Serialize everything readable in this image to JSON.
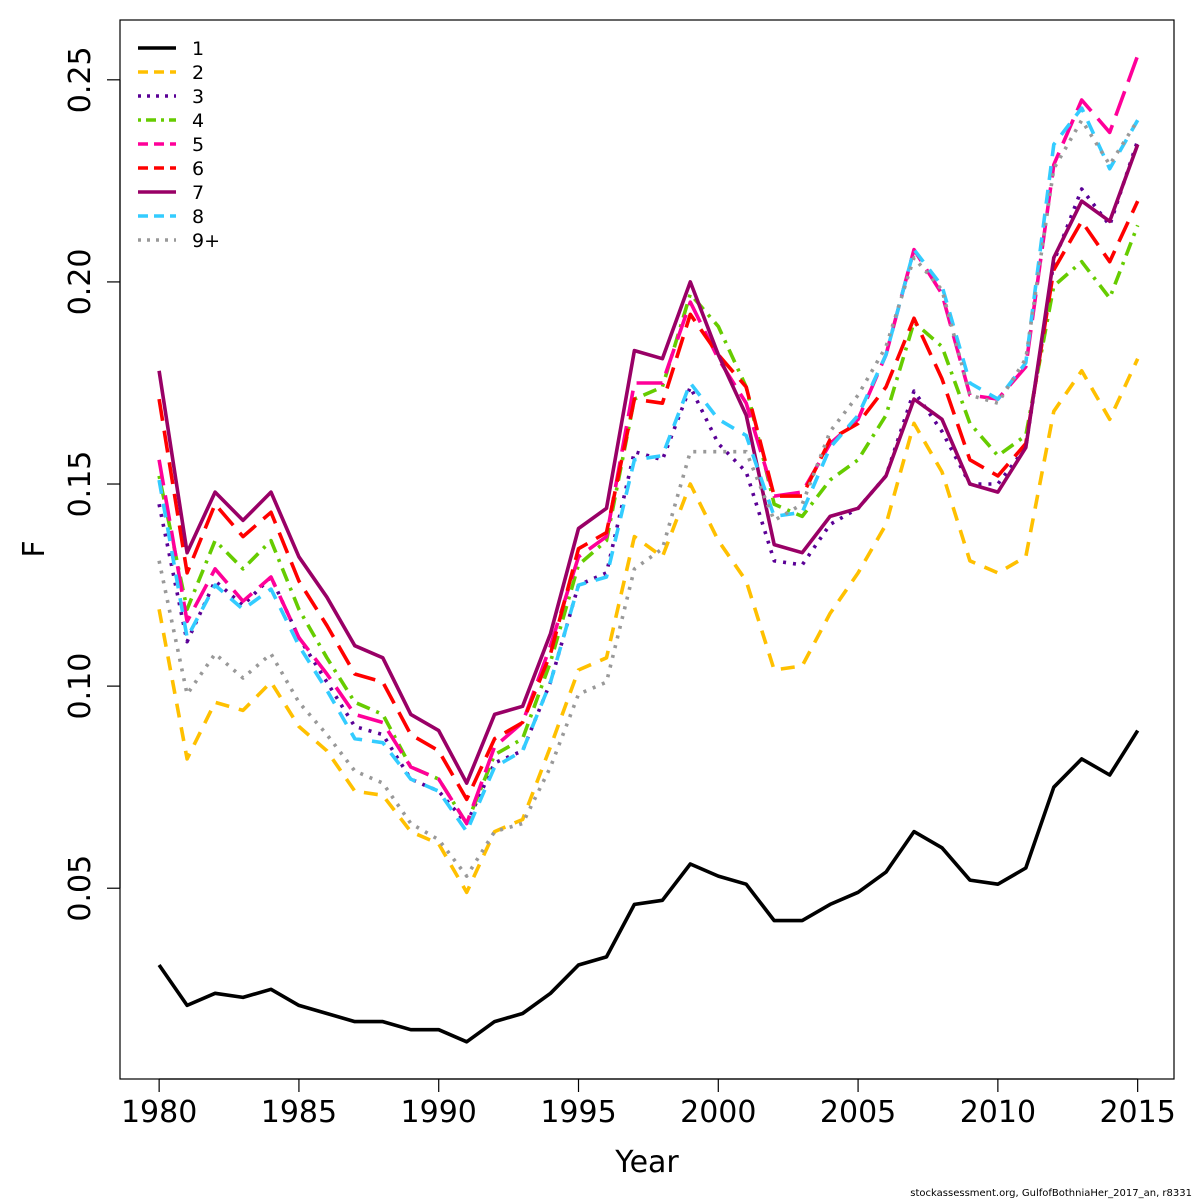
{
  "chart_data": {
    "type": "line",
    "title": "",
    "xlabel": "Year",
    "ylabel": "F",
    "xlim": [
      1978.6,
      2016.3
    ],
    "ylim": [
      0.0028,
      0.2648
    ],
    "x_ticks": [
      1980,
      1985,
      1990,
      1995,
      2000,
      2005,
      2010,
      2015
    ],
    "x_tick_labels": [
      "1980",
      "1985",
      "1990",
      "1995",
      "2000",
      "2005",
      "2010",
      "2015"
    ],
    "y_ticks": [
      0.05,
      0.1,
      0.15,
      0.2,
      0.25
    ],
    "y_tick_labels": [
      "0.05",
      "0.10",
      "0.15",
      "0.20",
      "0.25"
    ],
    "grid": false,
    "legend_position": "top-left",
    "x": [
      1980,
      1981,
      1982,
      1983,
      1984,
      1985,
      1986,
      1987,
      1988,
      1989,
      1990,
      1991,
      1992,
      1993,
      1994,
      1995,
      1996,
      1997,
      1998,
      1999,
      2000,
      2001,
      2002,
      2003,
      2004,
      2005,
      2006,
      2007,
      2008,
      2009,
      2010,
      2011,
      2012,
      2013,
      2014,
      2015
    ],
    "series": [
      {
        "name": "1",
        "color": "#000000",
        "dash": "solid",
        "values": [
          0.031,
          0.021,
          0.024,
          0.023,
          0.025,
          0.021,
          0.019,
          0.017,
          0.017,
          0.015,
          0.015,
          0.012,
          0.017,
          0.019,
          0.024,
          0.031,
          0.033,
          0.046,
          0.047,
          0.056,
          0.053,
          0.051,
          0.042,
          0.042,
          0.046,
          0.049,
          0.054,
          0.064,
          0.06,
          0.052,
          0.051,
          0.055,
          0.075,
          0.082,
          0.078,
          0.089
        ]
      },
      {
        "name": "2",
        "color": "#FFC000",
        "dash": "dashed",
        "values": [
          0.119,
          0.082,
          0.096,
          0.094,
          0.101,
          0.09,
          0.084,
          0.074,
          0.073,
          0.064,
          0.061,
          0.049,
          0.064,
          0.067,
          0.085,
          0.104,
          0.107,
          0.137,
          0.132,
          0.15,
          0.136,
          0.126,
          0.104,
          0.105,
          0.118,
          0.128,
          0.14,
          0.165,
          0.153,
          0.131,
          0.128,
          0.132,
          0.168,
          0.178,
          0.166,
          0.181
        ]
      },
      {
        "name": "3",
        "color": "#5A0096",
        "dash": "dotted",
        "values": [
          0.145,
          0.111,
          0.126,
          0.12,
          0.127,
          0.112,
          0.101,
          0.09,
          0.088,
          0.077,
          0.074,
          0.066,
          0.081,
          0.084,
          0.101,
          0.125,
          0.128,
          0.158,
          0.156,
          0.174,
          0.16,
          0.153,
          0.131,
          0.13,
          0.14,
          0.144,
          0.152,
          0.173,
          0.163,
          0.15,
          0.15,
          0.159,
          0.205,
          0.223,
          0.214,
          0.235
        ]
      },
      {
        "name": "4",
        "color": "#66CC00",
        "dash": "dotdash",
        "values": [
          0.152,
          0.119,
          0.136,
          0.129,
          0.136,
          0.119,
          0.107,
          0.096,
          0.093,
          0.08,
          0.077,
          0.066,
          0.083,
          0.087,
          0.106,
          0.13,
          0.136,
          0.171,
          0.174,
          0.197,
          0.189,
          0.174,
          0.145,
          0.142,
          0.151,
          0.156,
          0.167,
          0.19,
          0.184,
          0.165,
          0.157,
          0.162,
          0.199,
          0.205,
          0.196,
          0.214
        ]
      },
      {
        "name": "5",
        "color": "#FF0099",
        "dash": "longdash",
        "values": [
          0.156,
          0.116,
          0.129,
          0.121,
          0.127,
          0.112,
          0.103,
          0.093,
          0.091,
          0.08,
          0.077,
          0.066,
          0.085,
          0.091,
          0.11,
          0.132,
          0.137,
          0.175,
          0.175,
          0.195,
          0.181,
          0.17,
          0.147,
          0.148,
          0.16,
          0.166,
          0.182,
          0.208,
          0.197,
          0.172,
          0.171,
          0.179,
          0.229,
          0.245,
          0.237,
          0.256
        ]
      },
      {
        "name": "6",
        "color": "#FF0000",
        "dash": "longdash2",
        "values": [
          0.171,
          0.128,
          0.145,
          0.137,
          0.143,
          0.126,
          0.115,
          0.103,
          0.101,
          0.088,
          0.084,
          0.072,
          0.087,
          0.091,
          0.108,
          0.134,
          0.138,
          0.171,
          0.17,
          0.192,
          0.182,
          0.174,
          0.147,
          0.147,
          0.161,
          0.165,
          0.174,
          0.191,
          0.176,
          0.156,
          0.152,
          0.16,
          0.203,
          0.215,
          0.205,
          0.22
        ]
      },
      {
        "name": "7",
        "color": "#990066",
        "dash": "solid",
        "values": [
          0.178,
          0.133,
          0.148,
          0.141,
          0.148,
          0.132,
          0.122,
          0.11,
          0.107,
          0.093,
          0.089,
          0.076,
          0.093,
          0.095,
          0.113,
          0.139,
          0.144,
          0.183,
          0.181,
          0.2,
          0.182,
          0.167,
          0.135,
          0.133,
          0.142,
          0.144,
          0.152,
          0.171,
          0.166,
          0.15,
          0.148,
          0.159,
          0.206,
          0.22,
          0.215,
          0.234
        ]
      },
      {
        "name": "8",
        "color": "#33CCFF",
        "dash": "dashed",
        "values": [
          0.151,
          0.112,
          0.125,
          0.119,
          0.124,
          0.11,
          0.099,
          0.087,
          0.086,
          0.077,
          0.074,
          0.064,
          0.08,
          0.084,
          0.101,
          0.125,
          0.127,
          0.156,
          0.157,
          0.175,
          0.166,
          0.162,
          0.142,
          0.143,
          0.159,
          0.167,
          0.182,
          0.208,
          0.199,
          0.175,
          0.171,
          0.18,
          0.234,
          0.243,
          0.228,
          0.24
        ]
      },
      {
        "name": "9+",
        "color": "#999999",
        "dash": "dotted",
        "values": [
          0.131,
          0.098,
          0.108,
          0.102,
          0.108,
          0.096,
          0.088,
          0.079,
          0.076,
          0.066,
          0.062,
          0.053,
          0.064,
          0.066,
          0.08,
          0.098,
          0.101,
          0.129,
          0.134,
          0.158,
          0.158,
          0.158,
          0.141,
          0.145,
          0.163,
          0.172,
          0.184,
          0.206,
          0.198,
          0.172,
          0.17,
          0.181,
          0.228,
          0.24,
          0.229,
          0.24
        ]
      }
    ],
    "credit": "stockassessment.org, GulfofBothniaHer_2017_an, r8331"
  }
}
